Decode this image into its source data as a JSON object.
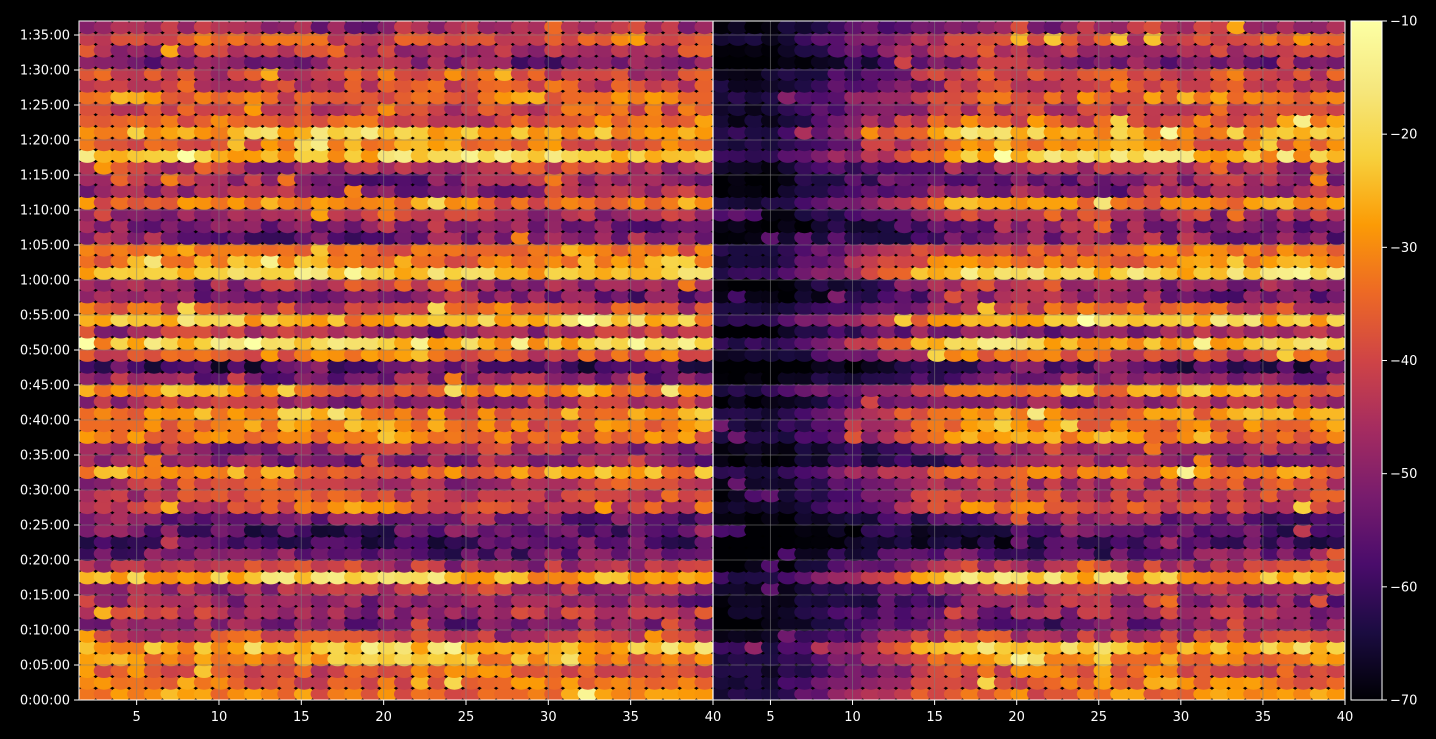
{
  "chart_data": {
    "type": "heatmap",
    "title": "",
    "xlabel": "",
    "ylabel": "",
    "grid": true,
    "panels": [
      {
        "name": "",
        "x_range": [
          1.5,
          40
        ],
        "x_ticks": [
          5,
          10,
          15,
          20,
          25,
          30,
          35,
          40
        ],
        "x_tick_labels": [
          "5",
          "10",
          "15",
          "20",
          "25",
          "30",
          "35",
          "40"
        ],
        "cell_columns": 38,
        "cell_rows": 58,
        "overall_level": "bright",
        "cells": []
      },
      {
        "name": "",
        "x_range": [
          1.5,
          40
        ],
        "x_ticks": [
          5,
          10,
          15,
          20,
          25,
          30,
          35,
          40
        ],
        "x_tick_labels": [
          "5",
          "10",
          "15",
          "20",
          "25",
          "30",
          "35",
          "40"
        ],
        "cell_columns": 38,
        "cell_rows": 58,
        "overall_level": "dim-left",
        "cells": []
      }
    ],
    "y_axis": {
      "unit": "time (h:mm:ss)",
      "range_seconds": [
        0,
        5820
      ],
      "ticks_seconds": [
        0,
        300,
        600,
        900,
        1200,
        1500,
        1800,
        2100,
        2400,
        2700,
        3000,
        3300,
        3600,
        3900,
        4200,
        4500,
        4800,
        5100,
        5400,
        5700
      ],
      "tick_labels": [
        "0:00:00",
        "0:05:00",
        "0:10:00",
        "0:15:00",
        "0:20:00",
        "0:25:00",
        "0:30:00",
        "0:35:00",
        "0:40:00",
        "0:45:00",
        "0:50:00",
        "0:55:00",
        "1:00:00",
        "1:05:00",
        "1:10:00",
        "1:15:00",
        "1:20:00",
        "1:25:00",
        "1:30:00",
        "1:35:00"
      ]
    },
    "colorbar": {
      "colormap": "inferno",
      "range": [
        -70,
        -10
      ],
      "ticks": [
        -70,
        -60,
        -50,
        -40,
        -30,
        -20,
        -10
      ],
      "tick_labels": [
        "−70",
        "−60",
        "−50",
        "−40",
        "−30",
        "−20",
        "−10"
      ]
    },
    "row_profile": {
      "description_key": "relative level per time row (0 = -70, 1 = -10)",
      "bright_rows_seconds": [
        30,
        150,
        300,
        420,
        480,
        1050,
        1110,
        1680,
        1950,
        2250,
        2370,
        2460,
        2670,
        3000,
        3060,
        3270,
        3300,
        3660,
        3720,
        3840,
        4260,
        4620,
        4680,
        4800,
        4860,
        4980,
        5160,
        5340,
        5640
      ]
    }
  },
  "colors": {
    "background": "#000000",
    "axes": "#ffffff",
    "grid": "#808080"
  }
}
